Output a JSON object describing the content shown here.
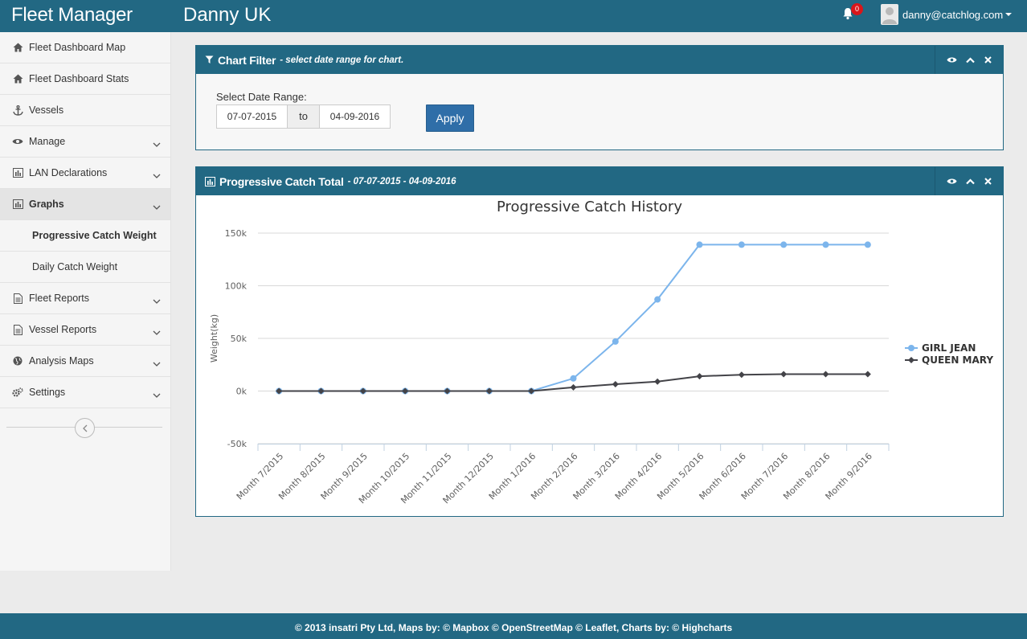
{
  "header": {
    "app_title": "Fleet Manager",
    "company": "Danny UK",
    "notification_count": "0",
    "user_email": "danny@catchlog.com"
  },
  "sidebar": {
    "items": [
      {
        "label": "Fleet Dashboard Map",
        "icon": "home-icon"
      },
      {
        "label": "Fleet Dashboard Stats",
        "icon": "home-icon"
      },
      {
        "label": "Vessels",
        "icon": "anchor-icon"
      },
      {
        "label": "Manage",
        "icon": "eye-icon"
      },
      {
        "label": "LAN Declarations",
        "icon": "bar-chart-icon"
      },
      {
        "label": "Graphs",
        "icon": "bar-chart-icon"
      },
      {
        "label": "Fleet Reports",
        "icon": "document-icon"
      },
      {
        "label": "Vessel Reports",
        "icon": "document-icon"
      },
      {
        "label": "Analysis Maps",
        "icon": "globe-icon"
      },
      {
        "label": "Settings",
        "icon": "gears-icon"
      }
    ],
    "graphs_sub": [
      {
        "label": "Progressive Catch Weight"
      },
      {
        "label": "Daily Catch Weight"
      }
    ]
  },
  "filter_panel": {
    "title": "Chart Filter",
    "subtitle": "- select date range for chart.",
    "date_label": "Select Date Range:",
    "date_from": "07-07-2015",
    "to_label": "to",
    "date_to": "04-09-2016",
    "apply_label": "Apply"
  },
  "chart_panel": {
    "title": "Progressive Catch Total",
    "subtitle": "- 07-07-2015 - 04-09-2016"
  },
  "footer": {
    "text": "© 2013 insatri Pty Ltd, Maps by: © Mapbox © OpenStreetMap © Leaflet, Charts by: © Highcharts"
  },
  "colors": {
    "brand": "#226883",
    "girl_jean": "#7cb5ec",
    "queen_mary": "#434348",
    "apply": "#2f6ea8"
  },
  "chart_data": {
    "type": "line",
    "title": "Progressive Catch History",
    "xlabel": "",
    "ylabel": "Weight(kg)",
    "ylim": [
      -50000,
      150000
    ],
    "yticks": [
      "150k",
      "100k",
      "50k",
      "0k",
      "-50k"
    ],
    "ytick_values": [
      150000,
      100000,
      50000,
      0,
      -50000
    ],
    "categories": [
      "Month 7/2015",
      "Month 8/2015",
      "Month 9/2015",
      "Month 10/2015",
      "Month 11/2015",
      "Month 12/2015",
      "Month 1/2016",
      "Month 2/2016",
      "Month 3/2016",
      "Month 4/2016",
      "Month 5/2016",
      "Month 6/2016",
      "Month 7/2016",
      "Month 8/2016",
      "Month 9/2016"
    ],
    "series": [
      {
        "name": "GIRL JEAN",
        "marker": "circle",
        "values": [
          0,
          0,
          0,
          0,
          0,
          0,
          0,
          12000,
          47000,
          87000,
          139000,
          139000,
          139000,
          139000,
          139000
        ]
      },
      {
        "name": "QUEEN MARY",
        "marker": "diamond",
        "values": [
          0,
          0,
          0,
          0,
          0,
          0,
          0,
          3500,
          6500,
          9000,
          14000,
          15500,
          16000,
          16000,
          16000
        ]
      }
    ],
    "grid": true,
    "legend_position": "right"
  }
}
